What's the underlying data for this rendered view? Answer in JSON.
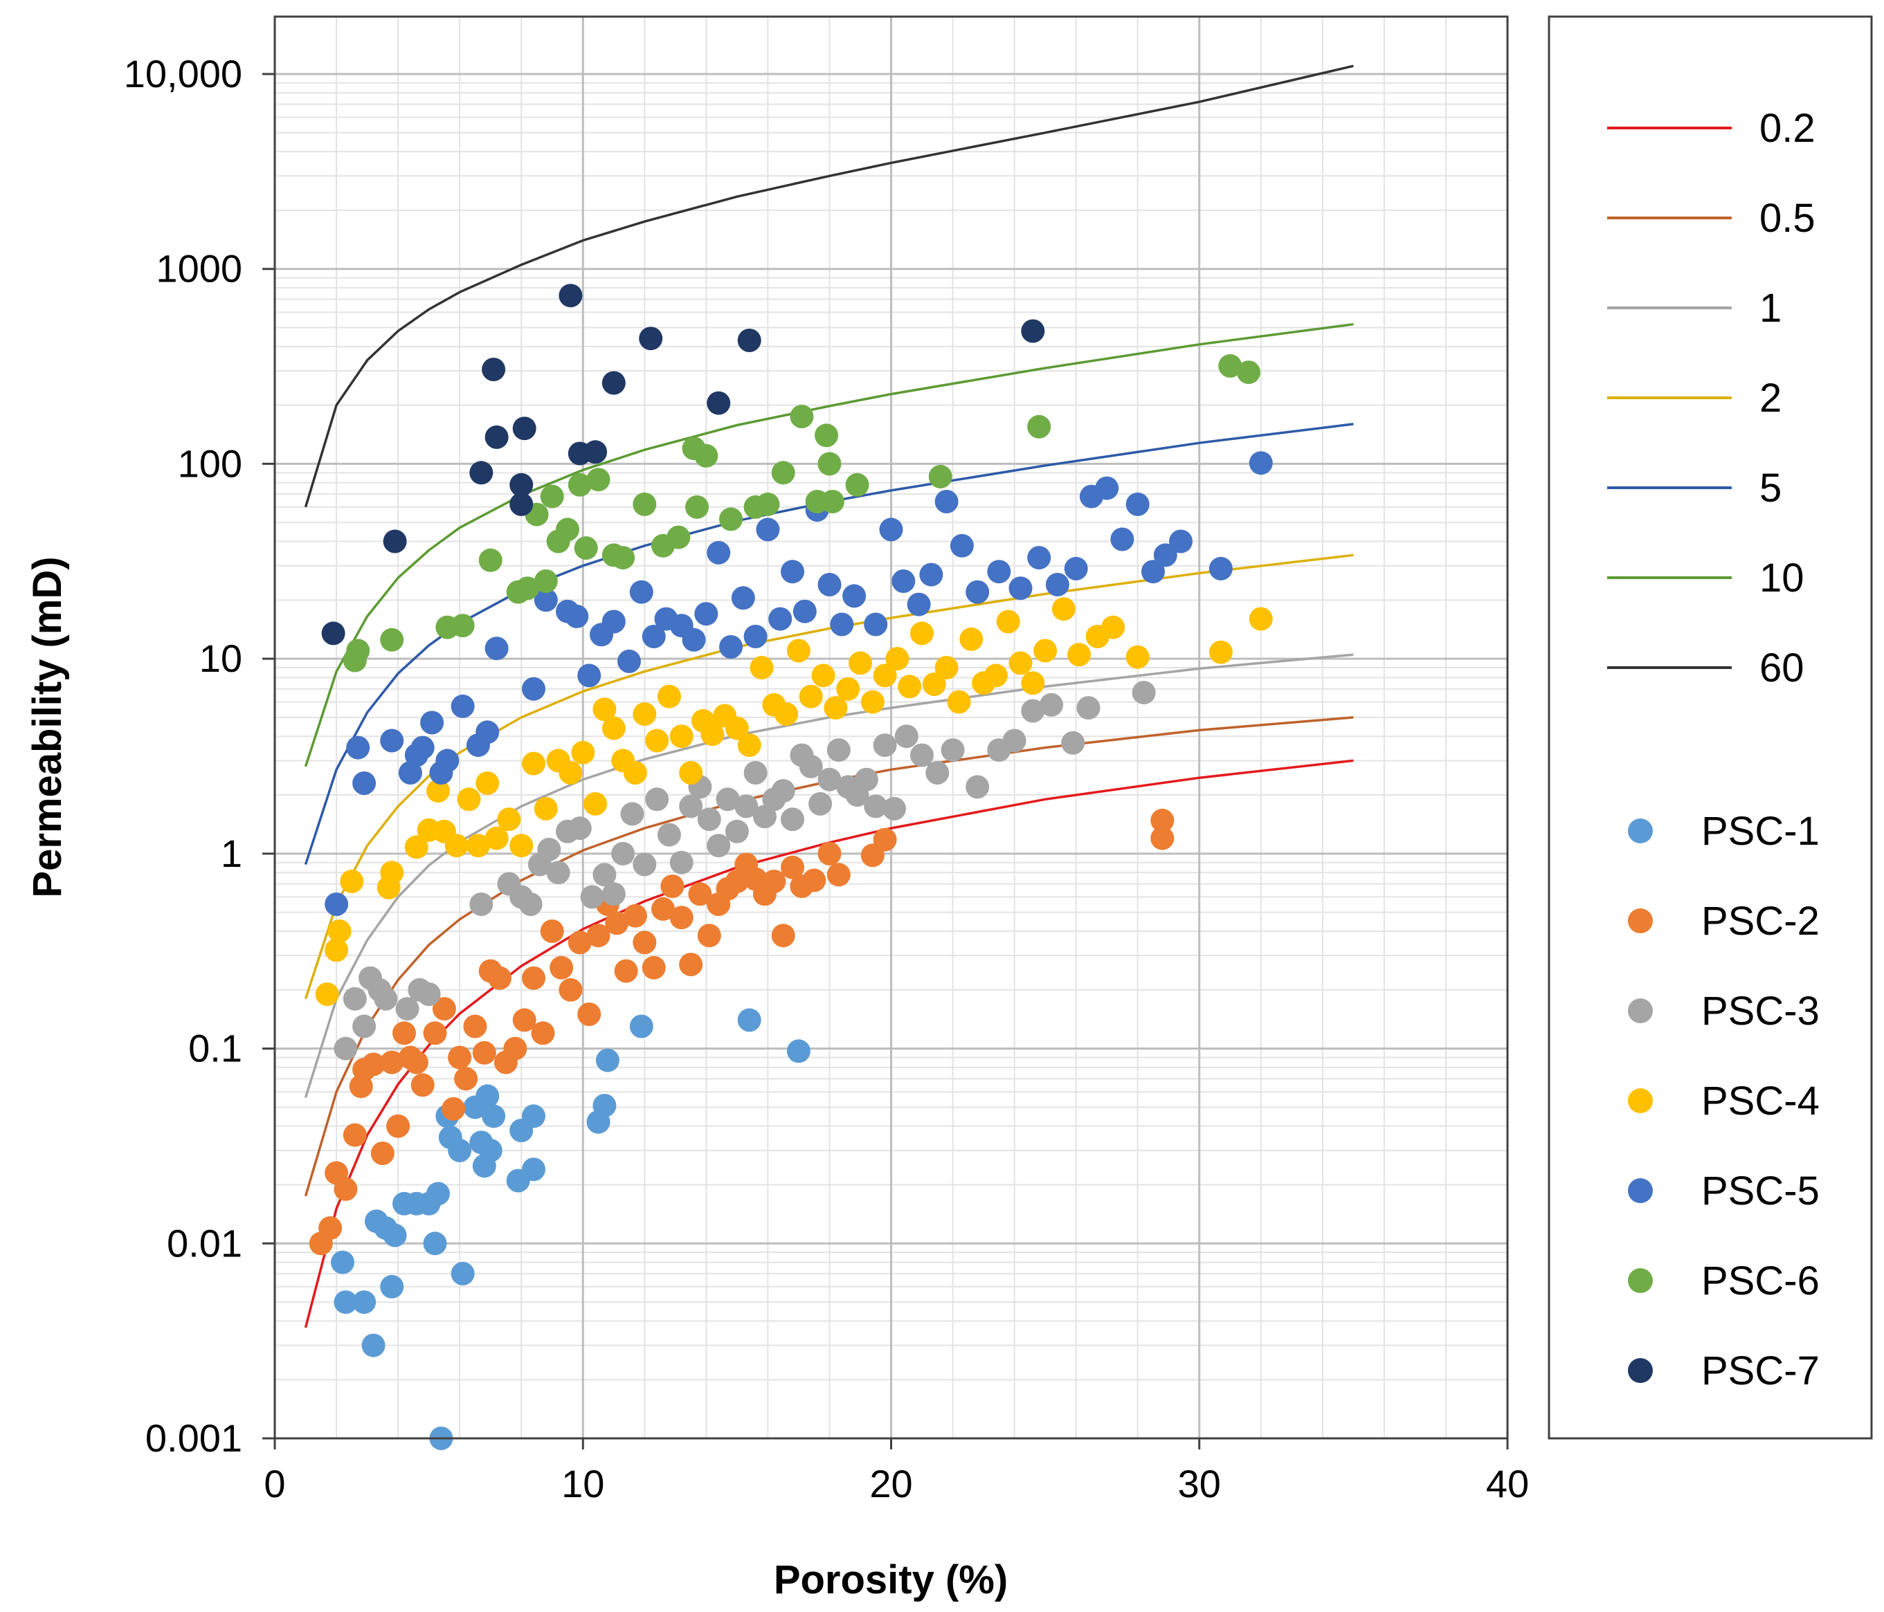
{
  "chart_data": {
    "type": "scatter",
    "xlabel": "Porosity (%)",
    "ylabel": "Permeability (mD)",
    "xlim": [
      0,
      40
    ],
    "ylim": [
      0.001,
      10000
    ],
    "yscale": "log",
    "x_ticks": [
      "0",
      "10",
      "20",
      "30",
      "40"
    ],
    "y_ticks": [
      "0.001",
      "0.01",
      "0.1",
      "1",
      "10",
      "100",
      "1000",
      "10,000"
    ],
    "grid": true,
    "legend_position": "right",
    "lines": [
      {
        "name": "0.2",
        "color": "#e41a1c",
        "x": [
          1,
          2,
          3,
          4,
          5,
          6,
          8,
          10,
          12,
          15,
          18,
          20,
          25,
          30,
          35
        ],
        "y": [
          0.0037,
          0.0151,
          0.036,
          0.0655,
          0.104,
          0.151,
          0.265,
          0.41,
          0.57,
          0.85,
          1.14,
          1.35,
          1.9,
          2.45,
          3.0
        ]
      },
      {
        "name": "0.5",
        "color": "#c0622b",
        "x": [
          1,
          2,
          3,
          4,
          5,
          6,
          8,
          10,
          12,
          15,
          18,
          20,
          25,
          30,
          35
        ],
        "y": [
          0.0175,
          0.06,
          0.13,
          0.225,
          0.34,
          0.46,
          0.73,
          1.04,
          1.35,
          1.85,
          2.35,
          2.7,
          3.5,
          4.3,
          5.0
        ]
      },
      {
        "name": "1",
        "color": "#a5a5a5",
        "x": [
          1,
          2,
          3,
          4,
          5,
          6,
          8,
          10,
          12,
          15,
          18,
          20,
          25,
          30,
          35
        ],
        "y": [
          0.056,
          0.18,
          0.36,
          0.6,
          0.87,
          1.15,
          1.75,
          2.4,
          3.05,
          4.05,
          5.0,
          5.6,
          7.2,
          8.9,
          10.5
        ]
      },
      {
        "name": "2",
        "color": "#ddb00a",
        "x": [
          1,
          2,
          3,
          4,
          5,
          6,
          8,
          10,
          12,
          15,
          18,
          20,
          25,
          30,
          35
        ],
        "y": [
          0.18,
          0.55,
          1.1,
          1.75,
          2.5,
          3.3,
          5.0,
          6.8,
          8.6,
          11.5,
          14.3,
          16.2,
          21.5,
          27.5,
          34
        ]
      },
      {
        "name": "5",
        "color": "#2e5aa8",
        "x": [
          1,
          2,
          3,
          4,
          5,
          6,
          8,
          10,
          12,
          15,
          18,
          20,
          25,
          30,
          35
        ],
        "y": [
          0.88,
          2.7,
          5.3,
          8.4,
          11.7,
          15.2,
          22.5,
          30,
          38,
          51,
          64,
          73,
          98,
          128,
          160
        ]
      },
      {
        "name": "10",
        "color": "#5c9a33",
        "x": [
          1,
          2,
          3,
          4,
          5,
          6,
          8,
          10,
          12,
          15,
          18,
          20,
          25,
          30,
          35
        ],
        "y": [
          2.8,
          8.6,
          16.5,
          26,
          36,
          47,
          69,
          93,
          118,
          158,
          198,
          228,
          310,
          410,
          520
        ]
      },
      {
        "name": "60",
        "color": "#333333",
        "x": [
          1,
          2,
          3,
          4,
          5,
          6,
          8,
          10,
          12,
          15,
          18,
          20,
          25,
          30,
          35
        ],
        "y": [
          60,
          200,
          340,
          480,
          620,
          760,
          1050,
          1400,
          1750,
          2350,
          3000,
          3500,
          5000,
          7200,
          11000
        ]
      }
    ],
    "series": [
      {
        "name": "PSC-1",
        "color": "#5b9bd5",
        "x": [
          2.2,
          2.3,
          2.9,
          3.2,
          3.3,
          3.6,
          3.8,
          3.9,
          4.2,
          4.6,
          5.0,
          5.2,
          5.3,
          5.4,
          5.6,
          5.7,
          6.0,
          6.1,
          6.5,
          6.7,
          6.8,
          6.9,
          7.0,
          7.1,
          7.9,
          8.0,
          8.4,
          8.4,
          10.5,
          10.7,
          10.8,
          11.9,
          15.4,
          17.0
        ],
        "y": [
          0.008,
          0.005,
          0.005,
          0.003,
          0.013,
          0.012,
          0.006,
          0.011,
          0.016,
          0.016,
          0.016,
          0.01,
          0.018,
          0.001,
          0.045,
          0.035,
          0.03,
          0.007,
          0.05,
          0.033,
          0.025,
          0.057,
          0.03,
          0.045,
          0.021,
          0.038,
          0.024,
          0.045,
          0.042,
          0.051,
          0.087,
          0.13,
          0.14,
          0.097
        ]
      },
      {
        "name": "PSC-2",
        "color": "#ed7d31",
        "x": [
          1.5,
          1.8,
          2.0,
          2.3,
          2.6,
          2.8,
          2.9,
          3.2,
          3.5,
          3.8,
          4.0,
          4.2,
          4.4,
          4.6,
          4.8,
          5.0,
          5.2,
          5.5,
          5.8,
          6.0,
          6.2,
          6.5,
          6.8,
          7.0,
          7.3,
          7.5,
          7.8,
          8.1,
          8.4,
          8.7,
          9.0,
          9.3,
          9.6,
          9.9,
          10.2,
          10.5,
          10.8,
          11.1,
          11.4,
          11.7,
          12.0,
          12.3,
          12.6,
          12.9,
          13.2,
          13.5,
          13.8,
          14.1,
          14.4,
          14.7,
          15.0,
          15.3,
          15.6,
          15.9,
          16.2,
          16.5,
          16.8,
          17.1,
          17.5,
          18.0,
          18.3,
          19.4,
          19.8,
          28.8,
          28.8
        ],
        "y": [
          0.01,
          0.012,
          0.023,
          0.019,
          0.036,
          0.064,
          0.078,
          0.083,
          0.029,
          0.085,
          0.04,
          0.12,
          0.09,
          0.085,
          0.065,
          0.19,
          0.12,
          0.16,
          0.049,
          0.09,
          0.07,
          0.13,
          0.095,
          0.25,
          0.23,
          0.085,
          0.1,
          0.14,
          0.23,
          0.12,
          0.4,
          0.26,
          0.2,
          0.35,
          0.15,
          0.38,
          0.55,
          0.44,
          0.25,
          0.48,
          0.35,
          0.26,
          0.52,
          0.68,
          0.47,
          0.27,
          0.62,
          0.38,
          0.55,
          0.66,
          0.72,
          0.88,
          0.74,
          0.62,
          0.72,
          0.38,
          0.85,
          0.68,
          0.73,
          1.0,
          0.78,
          0.98,
          1.18,
          1.48,
          1.2
        ]
      },
      {
        "name": "PSC-3",
        "color": "#a5a5a5",
        "x": [
          2.3,
          2.6,
          2.9,
          3.1,
          3.4,
          3.6,
          4.3,
          4.7,
          5.0,
          6.7,
          7.6,
          8.0,
          8.3,
          8.6,
          8.9,
          9.2,
          9.5,
          9.9,
          10.3,
          10.7,
          11.0,
          11.3,
          11.6,
          12.0,
          12.4,
          12.8,
          13.2,
          13.5,
          13.8,
          14.1,
          14.4,
          14.7,
          15.0,
          15.3,
          15.6,
          15.9,
          16.2,
          16.5,
          16.8,
          17.1,
          17.4,
          17.7,
          18.0,
          18.3,
          18.6,
          18.9,
          19.2,
          19.5,
          19.8,
          20.1,
          20.5,
          21.0,
          21.5,
          22.0,
          22.8,
          23.5,
          24.0,
          24.6,
          25.2,
          25.9,
          26.4,
          28.2
        ],
        "y": [
          0.1,
          0.18,
          0.13,
          0.23,
          0.2,
          0.18,
          0.16,
          0.2,
          0.19,
          0.55,
          0.7,
          0.6,
          0.55,
          0.88,
          1.05,
          0.8,
          1.3,
          1.35,
          0.6,
          0.78,
          0.62,
          1.0,
          1.6,
          0.88,
          1.9,
          1.25,
          0.9,
          1.75,
          2.2,
          1.5,
          1.1,
          1.9,
          1.3,
          1.75,
          2.6,
          1.55,
          1.9,
          2.1,
          1.5,
          3.2,
          2.8,
          1.8,
          2.4,
          3.4,
          2.2,
          2.0,
          2.4,
          1.75,
          3.6,
          1.7,
          4.0,
          3.2,
          2.6,
          3.4,
          2.2,
          3.4,
          3.8,
          5.4,
          5.8,
          3.7,
          5.6,
          6.7
        ]
      },
      {
        "name": "PSC-4",
        "color": "#ffc000",
        "x": [
          1.7,
          2.0,
          2.1,
          2.5,
          3.7,
          3.8,
          4.6,
          5.0,
          5.3,
          5.5,
          5.9,
          6.3,
          6.6,
          6.9,
          7.2,
          7.6,
          8.0,
          8.4,
          8.8,
          9.2,
          9.6,
          10.0,
          10.4,
          10.7,
          11.0,
          11.3,
          11.7,
          12.0,
          12.4,
          12.8,
          13.2,
          13.5,
          13.9,
          14.2,
          14.6,
          15.0,
          15.4,
          15.8,
          16.2,
          16.6,
          17.0,
          17.4,
          17.8,
          18.2,
          18.6,
          19.0,
          19.4,
          19.8,
          20.2,
          20.6,
          21.0,
          21.4,
          21.8,
          22.2,
          22.6,
          23.0,
          23.4,
          23.8,
          24.2,
          24.6,
          25.0,
          25.6,
          26.1,
          26.7,
          27.2,
          28.0,
          30.7,
          32.0
        ],
        "y": [
          0.19,
          0.32,
          0.4,
          0.72,
          0.67,
          0.8,
          1.08,
          1.32,
          2.1,
          1.3,
          1.1,
          1.9,
          1.1,
          2.3,
          1.2,
          1.5,
          1.1,
          2.9,
          1.7,
          3.0,
          2.6,
          3.3,
          1.8,
          5.5,
          4.4,
          3.0,
          2.6,
          5.2,
          3.8,
          6.4,
          4.0,
          2.6,
          4.8,
          4.1,
          5.1,
          4.4,
          3.6,
          9.0,
          5.8,
          5.2,
          11.0,
          6.4,
          8.2,
          5.6,
          7.0,
          9.5,
          6.0,
          8.2,
          10.0,
          7.2,
          13.5,
          7.4,
          9.0,
          6.0,
          12.6,
          7.5,
          8.2,
          15.5,
          9.5,
          7.5,
          11.0,
          18.0,
          10.5,
          13.0,
          14.5,
          10.2,
          10.8,
          16.0
        ]
      },
      {
        "name": "PSC-5",
        "color": "#4472c4",
        "x": [
          2.0,
          2.7,
          2.9,
          3.8,
          4.4,
          4.6,
          4.8,
          5.1,
          5.4,
          5.6,
          6.1,
          6.6,
          6.9,
          7.2,
          8.4,
          8.8,
          9.5,
          9.8,
          10.2,
          10.6,
          11.0,
          11.5,
          11.9,
          12.3,
          12.7,
          13.2,
          13.6,
          14.0,
          14.4,
          14.8,
          15.2,
          15.6,
          16.0,
          16.4,
          16.8,
          17.2,
          17.6,
          18.0,
          18.4,
          18.8,
          19.5,
          20.0,
          20.4,
          20.9,
          21.3,
          21.8,
          22.3,
          22.8,
          23.5,
          24.2,
          24.8,
          25.4,
          26.0,
          26.5,
          27.0,
          27.5,
          28.0,
          28.5,
          28.9,
          29.4,
          30.7,
          32.0
        ],
        "y": [
          0.55,
          3.5,
          2.3,
          3.8,
          2.6,
          3.2,
          3.5,
          4.7,
          2.6,
          3.0,
          5.7,
          3.6,
          4.2,
          11.3,
          7.0,
          20.0,
          17.5,
          16.5,
          8.2,
          13.3,
          15.5,
          9.7,
          22.0,
          13.0,
          16.0,
          14.8,
          12.5,
          17.0,
          35.0,
          11.5,
          20.5,
          13.0,
          46.0,
          16.0,
          28.0,
          17.5,
          58.0,
          24.0,
          15.0,
          21.0,
          15.0,
          46.0,
          25.0,
          19.0,
          27.0,
          64.0,
          38.0,
          22.0,
          28.0,
          23.0,
          33.0,
          24.0,
          29.0,
          68.0,
          75.0,
          41.0,
          62.0,
          28.0,
          34.0,
          40.0,
          29.0,
          101.0
        ]
      },
      {
        "name": "PSC-6",
        "color": "#70ad47",
        "x": [
          2.6,
          2.7,
          3.8,
          5.6,
          6.1,
          7.0,
          7.9,
          8.2,
          8.5,
          8.8,
          9.0,
          9.2,
          9.5,
          9.9,
          10.1,
          10.5,
          11.0,
          11.3,
          12.0,
          12.6,
          13.1,
          13.6,
          13.7,
          14.0,
          14.8,
          15.6,
          16.0,
          16.5,
          17.1,
          17.6,
          17.9,
          18.0,
          18.1,
          18.9,
          21.6,
          24.8,
          31.0,
          31.6
        ],
        "y": [
          9.8,
          11.0,
          12.5,
          14.5,
          14.8,
          32.0,
          22.0,
          23.0,
          55.0,
          25.0,
          68.0,
          40.0,
          46.0,
          78.0,
          37.0,
          83.0,
          34.0,
          33.0,
          62.0,
          38.0,
          42.0,
          120.0,
          60.0,
          110.0,
          52.0,
          60.0,
          62.0,
          90.0,
          175.0,
          64.0,
          140.0,
          100.0,
          64.0,
          78.0,
          86.0,
          155.0,
          318.0,
          295.0
        ]
      },
      {
        "name": "PSC-7",
        "color": "#203864",
        "x": [
          1.9,
          3.9,
          6.7,
          7.1,
          7.2,
          8.0,
          8.0,
          8.1,
          9.6,
          9.9,
          10.4,
          11.0,
          12.2,
          14.4,
          15.4,
          24.6
        ],
        "y": [
          13.5,
          40.0,
          90.0,
          305.0,
          137.0,
          62.0,
          78.0,
          152.0,
          730.0,
          113.0,
          115.0,
          260.0,
          440.0,
          205.0,
          430.0,
          480.0
        ]
      }
    ]
  }
}
